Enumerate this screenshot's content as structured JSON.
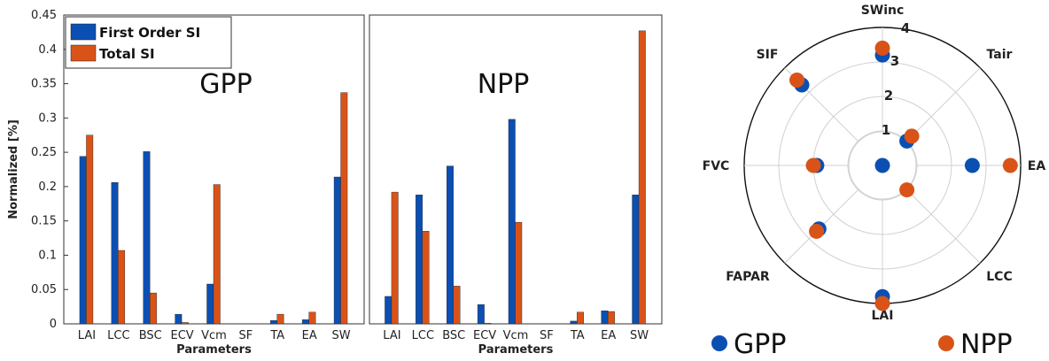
{
  "colors": {
    "first_order": "#0b4fb3",
    "total": "#d95319",
    "gpp": "#0b4fb3",
    "npp": "#d95319",
    "grid": "#d0d0d0",
    "axis": "#333333"
  },
  "chart_data": [
    {
      "type": "bar",
      "inset_label": "GPP",
      "categories": [
        "LAI",
        "LCC",
        "BSC",
        "ECV",
        "Vcm",
        "SF",
        "TA",
        "EA",
        "SW"
      ],
      "series": [
        {
          "name": "First Order SI",
          "values": [
            0.244,
            0.206,
            0.251,
            0.014,
            0.058,
            0.0,
            0.005,
            0.006,
            0.214
          ]
        },
        {
          "name": "Total SI",
          "values": [
            0.275,
            0.107,
            0.045,
            0.002,
            0.203,
            0.0,
            0.014,
            0.017,
            0.337
          ]
        }
      ],
      "xlabel": "Parameters",
      "ylabel": "Normalized [%]",
      "ylim": [
        0,
        0.45
      ],
      "yticks": [
        "0",
        "0.05",
        "0.1",
        "0.15",
        "0.2",
        "0.25",
        "0.3",
        "0.35",
        "0.4",
        "0.45"
      ],
      "legend": "top-left"
    },
    {
      "type": "bar",
      "inset_label": "NPP",
      "categories": [
        "LAI",
        "LCC",
        "BSC",
        "ECV",
        "Vcm",
        "SF",
        "TA",
        "EA",
        "SW"
      ],
      "series": [
        {
          "name": "First Order SI",
          "values": [
            0.04,
            0.188,
            0.23,
            0.028,
            0.298,
            0.0,
            0.004,
            0.019,
            0.188
          ]
        },
        {
          "name": "Total SI",
          "values": [
            0.192,
            0.135,
            0.055,
            0.001,
            0.148,
            0.0,
            0.017,
            0.018,
            0.427
          ]
        }
      ],
      "xlabel": "Parameters",
      "ylim": [
        0,
        0.45
      ]
    },
    {
      "type": "scatter",
      "projection": "polar",
      "axes": [
        "SWinc",
        "Tair",
        "EA",
        "LCC",
        "LAI",
        "FAPAR",
        "FVC",
        "SIF"
      ],
      "rlim": [
        0,
        4
      ],
      "rticks": [
        "0",
        "1",
        "2",
        "3",
        "4"
      ],
      "series": [
        {
          "name": "GPP",
          "values": [
            3.2,
            1.0,
            2.6,
            0.0,
            3.8,
            2.6,
            1.9,
            3.3
          ]
        },
        {
          "name": "NPP",
          "values": [
            3.4,
            1.2,
            3.7,
            1.0,
            4.0,
            2.7,
            2.0,
            3.5
          ]
        }
      ],
      "legend": "bottom"
    }
  ]
}
